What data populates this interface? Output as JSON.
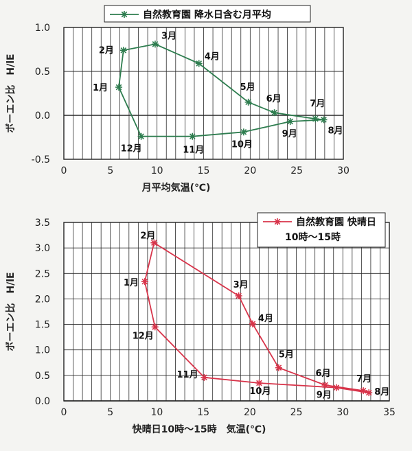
{
  "chart_data": [
    {
      "type": "line",
      "title": "",
      "legend": {
        "lines": [
          "自然教育園 降水日含む月平均"
        ],
        "placement": "top-center"
      },
      "xlabel": "月平均気温(℃)",
      "ylabel": "ボーエン比　H/lE",
      "xlim": [
        0,
        30
      ],
      "ylim": [
        -0.5,
        1.0
      ],
      "xticks": [
        "0",
        "5",
        "10",
        "15",
        "20",
        "25",
        "30"
      ],
      "yticks": [
        "1.0",
        "0.5",
        "0.0",
        "-0.5"
      ],
      "grid": true,
      "color": "#2e7d4f",
      "marker": "asterisk",
      "series": [
        {
          "name": "自然教育園 降水日含む月平均",
          "points": [
            {
              "label": "1月",
              "x": 5.9,
              "y": 0.32
            },
            {
              "label": "2月",
              "x": 6.4,
              "y": 0.74
            },
            {
              "label": "3月",
              "x": 9.8,
              "y": 0.81
            },
            {
              "label": "4月",
              "x": 14.5,
              "y": 0.59
            },
            {
              "label": "5月",
              "x": 19.8,
              "y": 0.15
            },
            {
              "label": "6月",
              "x": 22.6,
              "y": 0.03
            },
            {
              "label": "7月",
              "x": 27.0,
              "y": -0.04
            },
            {
              "label": "8月",
              "x": 27.9,
              "y": -0.05
            },
            {
              "label": "9月",
              "x": 24.3,
              "y": -0.07
            },
            {
              "label": "10月",
              "x": 19.3,
              "y": -0.19
            },
            {
              "label": "11月",
              "x": 13.8,
              "y": -0.24
            },
            {
              "label": "12月",
              "x": 8.3,
              "y": -0.24
            }
          ]
        }
      ]
    },
    {
      "type": "line",
      "title": "",
      "legend": {
        "lines": [
          "自然教育園 快晴日",
          "10時～15時"
        ],
        "placement": "top-right"
      },
      "xlabel": "快晴日10時～15時　気温(℃)",
      "ylabel": "ボーエン比　H/lE",
      "xlim": [
        0,
        35
      ],
      "ylim": [
        0,
        3.5
      ],
      "xticks": [
        "0",
        "5",
        "10",
        "15",
        "20",
        "25",
        "30",
        "35"
      ],
      "yticks": [
        "3.5",
        "3.0",
        "2.5",
        "2.0",
        "1.5",
        "1.0",
        "0.5",
        "0.0"
      ],
      "grid": true,
      "color": "#d8344a",
      "marker": "asterisk",
      "series": [
        {
          "name": "自然教育園 快晴日 10時～15時",
          "points": [
            {
              "label": "1月",
              "x": 8.7,
              "y": 2.34
            },
            {
              "label": "2月",
              "x": 9.7,
              "y": 3.1
            },
            {
              "label": "3月",
              "x": 18.8,
              "y": 2.06
            },
            {
              "label": "4月",
              "x": 20.3,
              "y": 1.51
            },
            {
              "label": "5月",
              "x": 23.1,
              "y": 0.65
            },
            {
              "label": "6月",
              "x": 28.1,
              "y": 0.31
            },
            {
              "label": "7月",
              "x": 32.2,
              "y": 0.2
            },
            {
              "label": "8月",
              "x": 32.8,
              "y": 0.16
            },
            {
              "label": "9月",
              "x": 29.3,
              "y": 0.26
            },
            {
              "label": "10月",
              "x": 21.0,
              "y": 0.35
            },
            {
              "label": "11月",
              "x": 15.1,
              "y": 0.46
            },
            {
              "label": "12月",
              "x": 9.8,
              "y": 1.45
            }
          ]
        }
      ]
    }
  ]
}
